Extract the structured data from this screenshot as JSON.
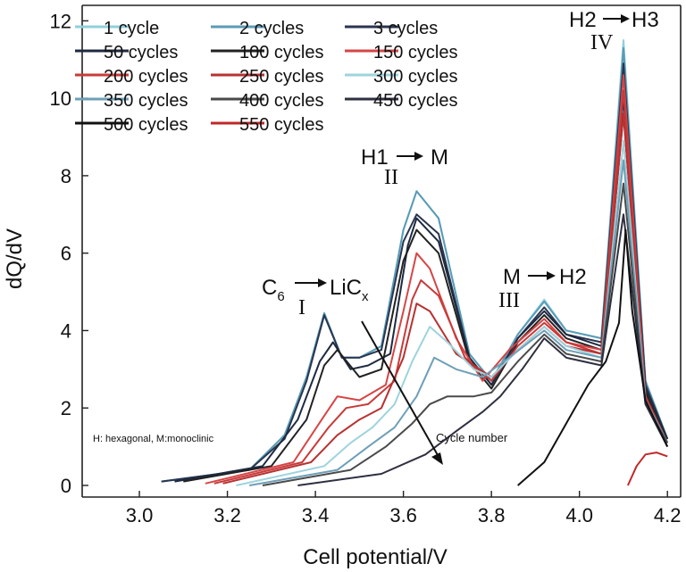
{
  "chart_data": {
    "type": "line",
    "xlabel": "Cell potential/V",
    "ylabel": "dQ/dV",
    "xlim": [
      2.87,
      4.23
    ],
    "ylim": [
      -0.3,
      12.4
    ],
    "x_ticks": [
      "3.0",
      "3.2",
      "3.4",
      "3.6",
      "3.8",
      "4.0",
      "4.2"
    ],
    "y_ticks": [
      "0",
      "2",
      "4",
      "6",
      "8",
      "10",
      "12"
    ],
    "grid": false,
    "legend_position": "top",
    "series": [
      {
        "name": "1 cycle",
        "color": "#8fd0dc",
        "values": [
          [
            3.05,
            0.1
          ],
          [
            3.25,
            0.4
          ],
          [
            3.33,
            1.3
          ],
          [
            3.38,
            2.8
          ],
          [
            3.42,
            4.45
          ],
          [
            3.46,
            3.3
          ],
          [
            3.5,
            3.3
          ],
          [
            3.55,
            3.6
          ],
          [
            3.6,
            6.6
          ],
          [
            3.63,
            7.6
          ],
          [
            3.68,
            6.9
          ],
          [
            3.75,
            3.4
          ],
          [
            3.8,
            2.7
          ],
          [
            3.86,
            3.9
          ],
          [
            3.92,
            4.8
          ],
          [
            3.97,
            4.0
          ],
          [
            4.05,
            3.8
          ],
          [
            4.1,
            11.5
          ],
          [
            4.15,
            2.7
          ],
          [
            4.2,
            1.2
          ]
        ]
      },
      {
        "name": "2 cycles",
        "color": "#5a9bb5",
        "values": [
          [
            3.05,
            0.1
          ],
          [
            3.25,
            0.4
          ],
          [
            3.33,
            1.3
          ],
          [
            3.38,
            2.8
          ],
          [
            3.42,
            4.45
          ],
          [
            3.46,
            3.3
          ],
          [
            3.5,
            3.3
          ],
          [
            3.55,
            3.6
          ],
          [
            3.6,
            6.6
          ],
          [
            3.63,
            7.6
          ],
          [
            3.68,
            6.9
          ],
          [
            3.75,
            3.4
          ],
          [
            3.8,
            2.7
          ],
          [
            3.86,
            3.9
          ],
          [
            3.92,
            4.75
          ],
          [
            3.97,
            4.0
          ],
          [
            4.05,
            3.8
          ],
          [
            4.1,
            11.3
          ],
          [
            4.15,
            2.7
          ],
          [
            4.2,
            1.2
          ]
        ]
      },
      {
        "name": "3 cycles",
        "color": "#2a3550",
        "values": [
          [
            3.05,
            0.1
          ],
          [
            3.25,
            0.4
          ],
          [
            3.33,
            1.2
          ],
          [
            3.38,
            2.7
          ],
          [
            3.42,
            4.4
          ],
          [
            3.46,
            3.3
          ],
          [
            3.5,
            3.3
          ],
          [
            3.55,
            3.5
          ],
          [
            3.6,
            6.3
          ],
          [
            3.63,
            7.0
          ],
          [
            3.68,
            6.5
          ],
          [
            3.75,
            3.3
          ],
          [
            3.8,
            2.6
          ],
          [
            3.86,
            3.8
          ],
          [
            3.92,
            4.6
          ],
          [
            3.97,
            3.9
          ],
          [
            4.05,
            3.7
          ],
          [
            4.1,
            10.9
          ],
          [
            4.15,
            2.6
          ],
          [
            4.2,
            1.2
          ]
        ]
      },
      {
        "name": "50 cycles",
        "color": "#1e2a40",
        "values": [
          [
            3.08,
            0.1
          ],
          [
            3.28,
            0.5
          ],
          [
            3.36,
            1.7
          ],
          [
            3.41,
            3.2
          ],
          [
            3.44,
            3.7
          ],
          [
            3.48,
            3.0
          ],
          [
            3.52,
            3.1
          ],
          [
            3.57,
            3.4
          ],
          [
            3.61,
            6.2
          ],
          [
            3.63,
            6.9
          ],
          [
            3.68,
            6.3
          ],
          [
            3.75,
            3.3
          ],
          [
            3.8,
            2.6
          ],
          [
            3.86,
            3.8
          ],
          [
            3.92,
            4.5
          ],
          [
            3.97,
            3.9
          ],
          [
            4.05,
            3.6
          ],
          [
            4.1,
            10.0
          ],
          [
            4.15,
            2.5
          ],
          [
            4.2,
            1.2
          ]
        ]
      },
      {
        "name": "100 cycles",
        "color": "#222222",
        "values": [
          [
            3.1,
            0.1
          ],
          [
            3.3,
            0.5
          ],
          [
            3.38,
            1.7
          ],
          [
            3.42,
            3.1
          ],
          [
            3.45,
            3.5
          ],
          [
            3.5,
            2.8
          ],
          [
            3.55,
            3.0
          ],
          [
            3.6,
            5.8
          ],
          [
            3.63,
            6.6
          ],
          [
            3.68,
            6.0
          ],
          [
            3.75,
            3.2
          ],
          [
            3.8,
            2.5
          ],
          [
            3.86,
            3.7
          ],
          [
            3.92,
            4.4
          ],
          [
            3.97,
            3.8
          ],
          [
            4.05,
            3.5
          ],
          [
            4.1,
            9.6
          ],
          [
            4.15,
            2.4
          ],
          [
            4.2,
            1.1
          ]
        ]
      },
      {
        "name": "150 cycles",
        "color": "#d64545",
        "values": [
          [
            3.15,
            0.05
          ],
          [
            3.35,
            0.6
          ],
          [
            3.42,
            1.8
          ],
          [
            3.45,
            2.3
          ],
          [
            3.5,
            2.2
          ],
          [
            3.56,
            2.6
          ],
          [
            3.6,
            4.5
          ],
          [
            3.63,
            6.0
          ],
          [
            3.66,
            5.6
          ],
          [
            3.72,
            3.8
          ],
          [
            3.78,
            2.7
          ],
          [
            3.84,
            3.5
          ],
          [
            3.92,
            4.3
          ],
          [
            3.97,
            3.7
          ],
          [
            4.05,
            3.5
          ],
          [
            4.1,
            10.6
          ],
          [
            4.15,
            2.3
          ],
          [
            4.2,
            1.1
          ]
        ]
      },
      {
        "name": "200 cycles",
        "color": "#c83a3a",
        "values": [
          [
            3.17,
            0.05
          ],
          [
            3.37,
            0.6
          ],
          [
            3.43,
            1.5
          ],
          [
            3.47,
            2.0
          ],
          [
            3.52,
            2.1
          ],
          [
            3.58,
            2.7
          ],
          [
            3.62,
            4.8
          ],
          [
            3.64,
            5.3
          ],
          [
            3.68,
            4.9
          ],
          [
            3.74,
            3.3
          ],
          [
            3.8,
            2.7
          ],
          [
            3.86,
            3.6
          ],
          [
            3.92,
            4.2
          ],
          [
            3.97,
            3.7
          ],
          [
            4.05,
            3.4
          ],
          [
            4.1,
            10.2
          ],
          [
            4.15,
            2.3
          ],
          [
            4.2,
            1.1
          ]
        ]
      },
      {
        "name": "250 cycles",
        "color": "#b73232",
        "values": [
          [
            3.19,
            0.05
          ],
          [
            3.39,
            0.6
          ],
          [
            3.45,
            1.3
          ],
          [
            3.5,
            1.7
          ],
          [
            3.55,
            2.0
          ],
          [
            3.6,
            3.3
          ],
          [
            3.63,
            4.7
          ],
          [
            3.66,
            4.5
          ],
          [
            3.72,
            3.4
          ],
          [
            3.8,
            2.8
          ],
          [
            3.86,
            3.5
          ],
          [
            3.92,
            4.1
          ],
          [
            3.97,
            3.6
          ],
          [
            4.05,
            3.4
          ],
          [
            4.1,
            9.6
          ],
          [
            4.15,
            2.2
          ],
          [
            4.2,
            1.1
          ]
        ]
      },
      {
        "name": "300 cycles",
        "color": "#9ed3dc",
        "values": [
          [
            3.22,
            0.0
          ],
          [
            3.42,
            0.5
          ],
          [
            3.48,
            1.1
          ],
          [
            3.53,
            1.5
          ],
          [
            3.58,
            2.1
          ],
          [
            3.62,
            3.2
          ],
          [
            3.66,
            4.1
          ],
          [
            3.7,
            3.7
          ],
          [
            3.76,
            3.0
          ],
          [
            3.8,
            2.8
          ],
          [
            3.86,
            3.5
          ],
          [
            3.92,
            4.1
          ],
          [
            3.97,
            3.6
          ],
          [
            4.05,
            3.3
          ],
          [
            4.1,
            8.9
          ],
          [
            4.15,
            2.2
          ],
          [
            4.2,
            1.1
          ]
        ]
      },
      {
        "name": "350 cycles",
        "color": "#6e9fb8",
        "values": [
          [
            3.25,
            0.0
          ],
          [
            3.45,
            0.4
          ],
          [
            3.52,
            1.0
          ],
          [
            3.58,
            1.5
          ],
          [
            3.63,
            2.3
          ],
          [
            3.67,
            3.3
          ],
          [
            3.72,
            3.0
          ],
          [
            3.78,
            2.8
          ],
          [
            3.84,
            3.3
          ],
          [
            3.92,
            4.0
          ],
          [
            3.97,
            3.5
          ],
          [
            4.05,
            3.3
          ],
          [
            4.1,
            8.4
          ],
          [
            4.15,
            2.2
          ],
          [
            4.2,
            1.1
          ]
        ]
      },
      {
        "name": "400 cycles",
        "color": "#4a4a4a",
        "values": [
          [
            3.28,
            0.0
          ],
          [
            3.48,
            0.4
          ],
          [
            3.56,
            1.0
          ],
          [
            3.62,
            1.6
          ],
          [
            3.66,
            2.1
          ],
          [
            3.7,
            2.3
          ],
          [
            3.76,
            2.3
          ],
          [
            3.8,
            2.4
          ],
          [
            3.86,
            3.2
          ],
          [
            3.92,
            3.9
          ],
          [
            3.97,
            3.4
          ],
          [
            4.05,
            3.2
          ],
          [
            4.1,
            7.8
          ],
          [
            4.15,
            2.1
          ],
          [
            4.2,
            1.1
          ]
        ]
      },
      {
        "name": "450 cycles",
        "color": "#2e3040",
        "values": [
          [
            3.36,
            0.0
          ],
          [
            3.55,
            0.3
          ],
          [
            3.65,
            0.8
          ],
          [
            3.72,
            1.4
          ],
          [
            3.78,
            1.9
          ],
          [
            3.82,
            2.3
          ],
          [
            3.87,
            3.0
          ],
          [
            3.92,
            3.8
          ],
          [
            3.97,
            3.3
          ],
          [
            4.05,
            3.1
          ],
          [
            4.1,
            7.0
          ],
          [
            4.15,
            2.1
          ],
          [
            4.2,
            1.0
          ]
        ]
      },
      {
        "name": "500 cycles",
        "color": "#111111",
        "values": [
          [
            3.86,
            0.0
          ],
          [
            3.92,
            0.6
          ],
          [
            3.97,
            1.6
          ],
          [
            4.02,
            2.6
          ],
          [
            4.06,
            3.2
          ],
          [
            4.09,
            4.2
          ],
          [
            4.105,
            6.6
          ],
          [
            4.12,
            4.5
          ],
          [
            4.15,
            2.2
          ],
          [
            4.2,
            1.0
          ]
        ]
      },
      {
        "name": "550 cycles",
        "color": "#c02828",
        "values": [
          [
            4.11,
            0.0
          ],
          [
            4.13,
            0.5
          ],
          [
            4.15,
            0.8
          ],
          [
            4.175,
            0.85
          ],
          [
            4.2,
            0.75
          ]
        ]
      }
    ],
    "annotations": [
      {
        "text": "C",
        "sub": "6",
        "arrow_to": "LiC",
        "arrow_to_sub": "x",
        "roman": "I",
        "x": 3.35,
        "y": 5.0
      },
      {
        "text": "H1",
        "arrow_to": "M",
        "roman": "II",
        "x": 3.63,
        "y": 8.5
      },
      {
        "text": "M",
        "arrow_to": "H2",
        "roman": "III",
        "x": 3.9,
        "y": 5.0
      },
      {
        "text": "H2",
        "arrow_to": "H3",
        "roman": "IV",
        "x": 4.1,
        "y": 11.7
      },
      {
        "text": "Cycle number"
      },
      {
        "text": "H: hexagonal,  M:monoclinic"
      }
    ]
  }
}
